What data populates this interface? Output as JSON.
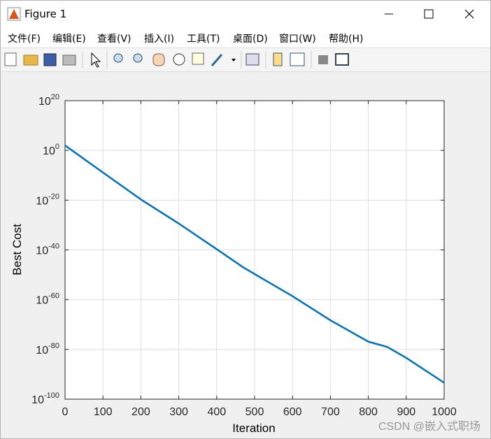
{
  "window": {
    "title": "Figure 1",
    "menu": [
      "文件(F)",
      "编辑(E)",
      "查看(V)",
      "插入(I)",
      "工具(T)",
      "桌面(D)",
      "窗口(W)",
      "帮助(H)"
    ]
  },
  "chart_data": {
    "type": "line",
    "x_label": "Iteration",
    "y_label": "Best Cost",
    "x": [
      0,
      100,
      200,
      300,
      400,
      470,
      500,
      600,
      700,
      800,
      850,
      900,
      1000
    ],
    "values": [
      100,
      1.3e-09,
      2e-20,
      4e-30,
      2e-40,
      1e-47,
      2e-50,
      2.5e-59,
      5e-69,
      1.3e-77,
      1e-79,
      4e-84,
      4e-94
    ],
    "color": "#0072bd",
    "y_scale": "log",
    "grid": true,
    "xlim": [
      0,
      1000
    ],
    "xticks": [
      0,
      100,
      200,
      300,
      400,
      500,
      600,
      700,
      800,
      900,
      1000
    ],
    "ylim": [
      1e-100,
      1e+20
    ],
    "yticks": [
      {
        "value": 1e-100,
        "label": "10^-100"
      },
      {
        "value": 1e-80,
        "label": "10^-80"
      },
      {
        "value": 1e-60,
        "label": "10^-60"
      },
      {
        "value": 1e-40,
        "label": "10^-40"
      },
      {
        "value": 1e-20,
        "label": "10^-20"
      },
      {
        "value": 1,
        "label": "10^0"
      },
      {
        "value": 1e+20,
        "label": "10^20"
      }
    ]
  },
  "watermark": "CSDN @嵌入式职场"
}
